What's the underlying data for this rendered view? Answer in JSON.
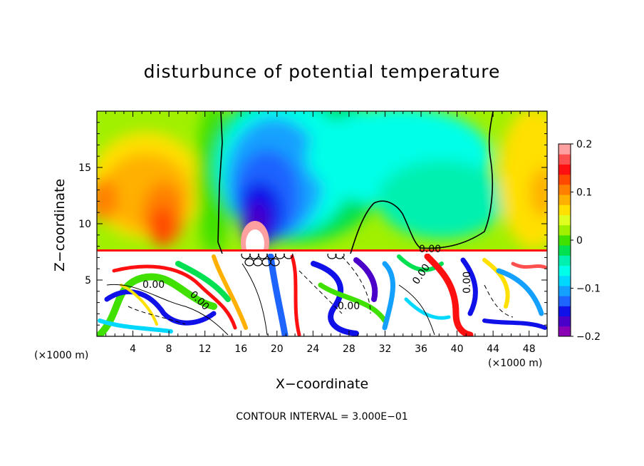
{
  "chart_data": {
    "type": "heatmap",
    "title": "disturbunce of potential temperature",
    "xlabel": "X−coordinate",
    "ylabel": "Z−coordinate",
    "x_unit": "(×1000 m)",
    "xlim": [
      0,
      50
    ],
    "ylim": [
      0,
      20
    ],
    "x_ticks": [
      4,
      8,
      12,
      16,
      20,
      24,
      28,
      32,
      36,
      40,
      44,
      48
    ],
    "y_ticks": [
      5,
      10,
      15
    ],
    "colorbar": {
      "range": [
        -0.2,
        0.2
      ],
      "ticks": [
        0.2,
        0.1,
        0,
        -0.1,
        -0.2
      ],
      "tick_labels": [
        "0.2",
        "0.1",
        "0",
        "−0.1",
        "−0.2"
      ],
      "colors": [
        "#8a00b4",
        "#4a00c8",
        "#1010e8",
        "#1e64ff",
        "#14a0ff",
        "#00d8ff",
        "#00ffe8",
        "#00f0b0",
        "#00e050",
        "#40e000",
        "#a0f000",
        "#e0ff20",
        "#ffe000",
        "#ffb000",
        "#ff8000",
        "#ff4800",
        "#ff1010",
        "#ff5050",
        "#ffa0a0"
      ]
    },
    "contour_labels": [
      "0.00",
      "0.00",
      "0.00",
      "0.00",
      "0.00",
      "0.00"
    ],
    "annotation": "CONTOUR INTERVAL = 3.000E−01"
  }
}
